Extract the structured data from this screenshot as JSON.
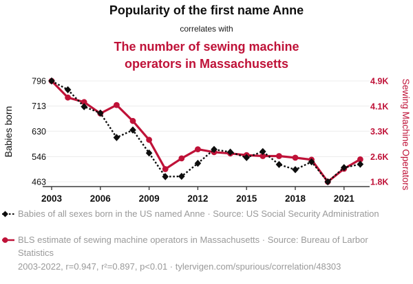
{
  "header": {
    "title": "Popularity of the first name Anne",
    "subtitle": "correlates with",
    "secondary_title": "The number of sewing machine operators in Massachusetts"
  },
  "chart_data": {
    "type": "line",
    "x": [
      2003,
      2004,
      2005,
      2006,
      2007,
      2008,
      2009,
      2010,
      2011,
      2012,
      2013,
      2014,
      2015,
      2016,
      2017,
      2018,
      2019,
      2020,
      2021,
      2022
    ],
    "x_ticks": [
      2003,
      2006,
      2009,
      2012,
      2015,
      2018,
      2021
    ],
    "series": [
      {
        "name": "Babies of all sexes born in the US named Anne",
        "axis": "left",
        "color": "#0d0d0d",
        "line_style": "dashed",
        "marker": "diamond",
        "values": [
          796,
          767,
          711,
          690,
          609,
          634,
          558,
          480,
          481,
          524,
          570,
          561,
          543,
          563,
          520,
          503,
          529,
          463,
          510,
          521
        ]
      },
      {
        "name": "BLS estimate of sewing machine operators in Massachusetts",
        "axis": "right",
        "color": "#bf1238",
        "line_style": "solid",
        "marker": "circle",
        "values": [
          4900,
          4390,
          4250,
          3900,
          4160,
          3670,
          3090,
          2190,
          2520,
          2800,
          2710,
          2670,
          2620,
          2590,
          2590,
          2540,
          2480,
          1800,
          2200,
          2490
        ]
      }
    ],
    "left_axis": {
      "label": "Babies born",
      "tick_values": [
        796,
        713,
        630,
        546,
        463
      ],
      "tick_labels": [
        "796",
        "713",
        "630",
        "546",
        "463"
      ],
      "min": 463,
      "max": 796
    },
    "right_axis": {
      "label": "Sewing Machine Operators",
      "tick_values": [
        4900,
        4125,
        3350,
        2575,
        1800
      ],
      "tick_labels": [
        "4.9K",
        "4.1K",
        "3.3K",
        "2.6K",
        "1.8K"
      ],
      "min": 1800,
      "max": 4900
    },
    "grid": true,
    "legend_position": "bottom",
    "title": "Popularity of the first name Anne correlates with The number of sewing machine operators in Massachusetts"
  },
  "legend": {
    "items": [
      {
        "label": "Babies of all sexes born in the US named Anne · Source: US Social Security Administration",
        "marker": "black-diamond-dashed-line"
      },
      {
        "label": "BLS estimate of sewing machine operators in Massachusetts · Source: Bureau of Larbor Statistics",
        "marker": "red-circle-solid-line"
      }
    ]
  },
  "footer": {
    "text": "2003-2022, r=0.947, r²=0.897, p<0.01 · tylervigen.com/spurious/correlation/48303"
  },
  "colors": {
    "accent_red": "#bf1238",
    "text_dark": "#0f0f0f",
    "muted": "#999999",
    "gridline": "#ececec",
    "axis": "#3c3c3c"
  }
}
